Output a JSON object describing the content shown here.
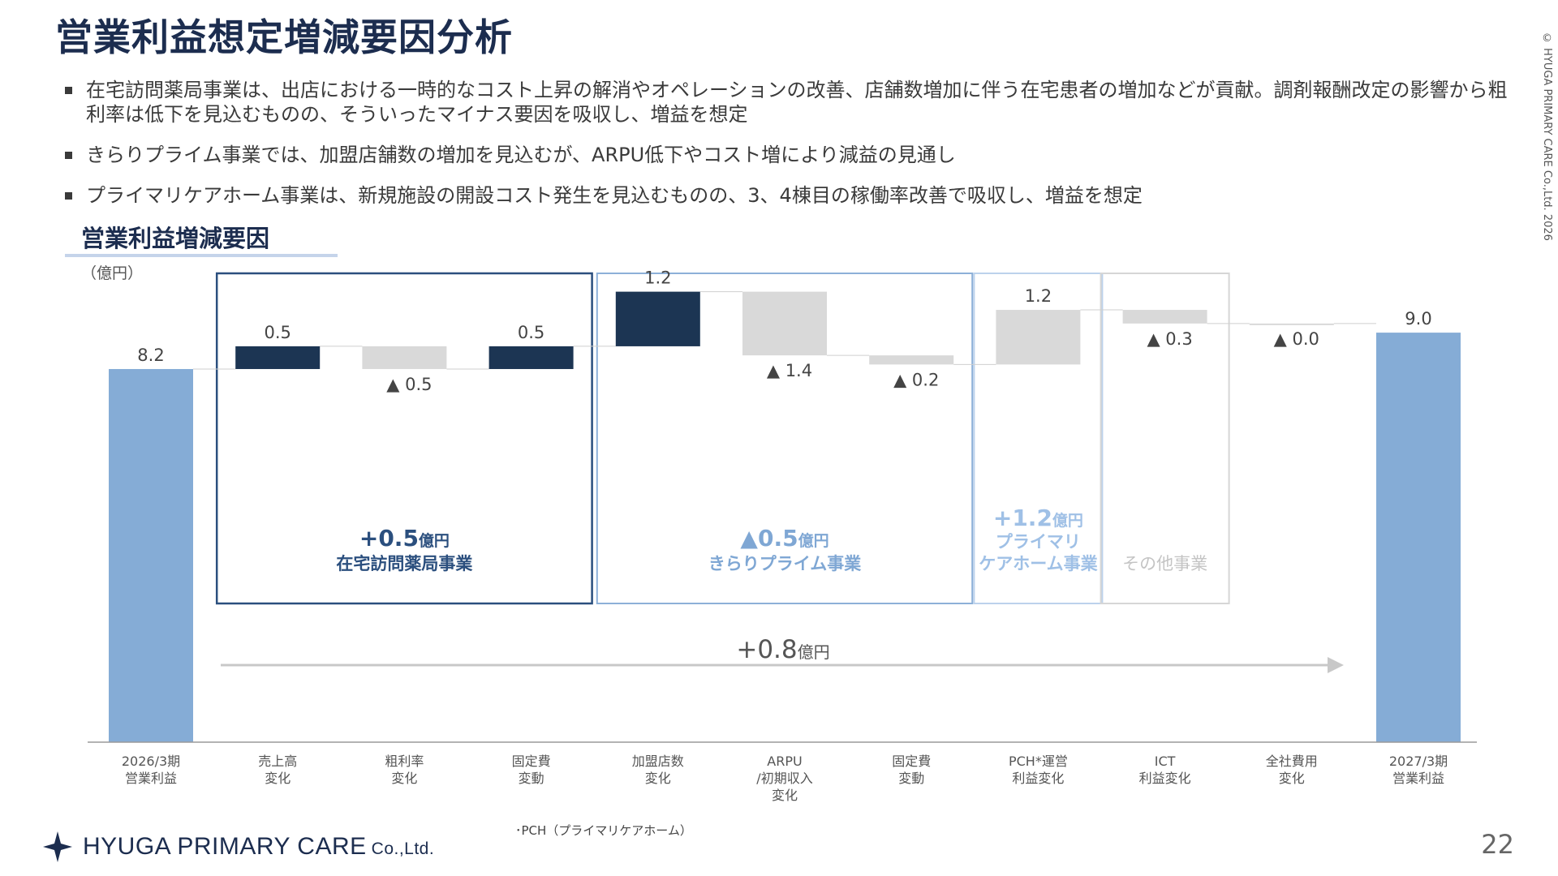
{
  "page": {
    "title": "営業利益想定増減要因分析",
    "copyright": "© HYUGA PRIMARY CARE Co.,Ltd.   2026",
    "bullets": [
      "在宅訪問薬局事業は、出店における一時的なコスト上昇の解消やオペレーションの改善、店舗数増加に伴う在宅患者の増加などが貢献。調剤報酬改定の影響から粗利率は低下を見込むものの、そういったマイナス要因を吸収し、増益を想定",
      "きらりプライム事業では、加盟店舗数の増加を見込むが、ARPU低下やコスト増により減益の見通し",
      "プライマリケアホーム事業は、新規施設の開設コスト発生を見込むものの、3、4棟目の稼働率改善で吸収し、増益を想定"
    ],
    "section_title": "営業利益増減要因",
    "unit": "（億円）",
    "footnote": "･PCH（プライマリケアホーム）",
    "logo_text": "HYUGA PRIMARY CARE",
    "logo_suffix": "Co.,Ltd.",
    "page_number": "22"
  },
  "colors": {
    "navy": "#1c3553",
    "endpoint": "#85acd6",
    "negative": "#d9d9d9",
    "box_home": "#2b4f7e",
    "box_kirari": "#8db0d8",
    "box_pch": "#bcd2ec",
    "box_other": "#d6d6d6",
    "arrow": "#c8c8c8"
  },
  "chart_data": {
    "type": "bar",
    "subtype": "waterfall",
    "categories": [
      "2026/3期\n営業利益",
      "売上高\n変化",
      "粗利率\n変化",
      "固定費\n変動",
      "加盟店数\n変化",
      "ARPU\n/初期収入\n変化",
      "固定費\n変動",
      "PCH*運営\n利益変化",
      "ICT\n利益変化",
      "全社費用\n変化",
      "2027/3期\n営業利益"
    ],
    "values": [
      8.2,
      0.5,
      -0.5,
      0.5,
      1.2,
      -1.4,
      -0.2,
      1.2,
      -0.3,
      0.0,
      9.0
    ],
    "value_labels": [
      "8.2",
      "0.5",
      "▲ 0.5",
      "0.5",
      "1.2",
      "▲ 1.4",
      "▲ 0.2",
      "1.2",
      "▲ 0.3",
      "▲ 0.0",
      "9.0"
    ],
    "kinds": [
      "total",
      "up",
      "down",
      "up",
      "up",
      "down",
      "down",
      "change",
      "down",
      "down",
      "total"
    ],
    "groups": [
      {
        "amount": "+0.5",
        "unit": "億円",
        "name_lines": [
          "在宅訪問薬局事業"
        ],
        "color_key": "box_home"
      },
      {
        "amount": "▲0.5",
        "unit": "億円",
        "name_lines": [
          "きらりプライム事業"
        ],
        "color_key": "box_kirari"
      },
      {
        "amount": "+1.2",
        "unit": "億円",
        "name_lines": [
          "プライマリ",
          "ケアホーム事業"
        ],
        "color_key": "box_pch"
      },
      {
        "amount": "",
        "unit": "",
        "name_lines": [
          "その他事業"
        ],
        "color_key": "box_other"
      }
    ],
    "total_change": {
      "amount": "+0.8",
      "unit": "億円"
    }
  }
}
